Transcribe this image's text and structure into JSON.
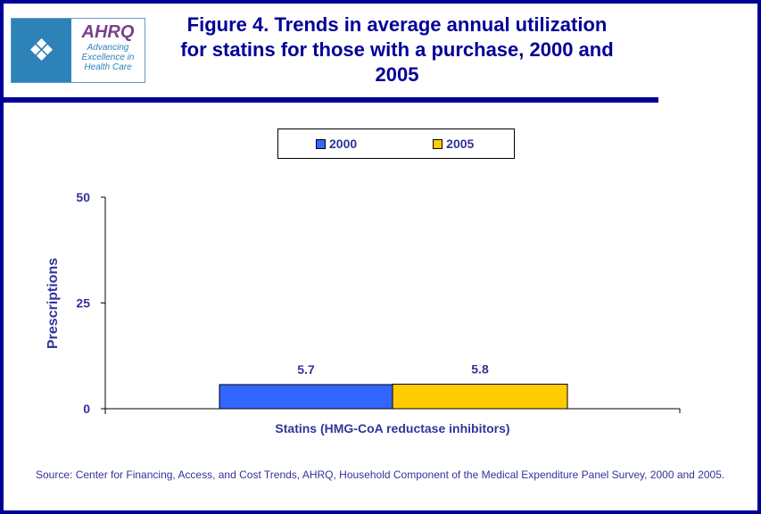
{
  "logo": {
    "brand": "AHRQ",
    "tagline": "Advancing Excellence in Health Care"
  },
  "chart_data": {
    "type": "bar",
    "title": "Figure 4. Trends in average annual utilization for statins for those with a purchase, 2000 and 2005",
    "categories": [
      "Statins (HMG-CoA reductase inhibitors)"
    ],
    "series": [
      {
        "name": "2000",
        "values": [
          5.7
        ],
        "labels": [
          "5.7"
        ],
        "color": "#3366FF"
      },
      {
        "name": "2005",
        "values": [
          5.8
        ],
        "labels": [
          "5.8"
        ],
        "color": "#FFCC00"
      }
    ],
    "xlabel": "",
    "ylabel": "Prescriptions",
    "ylim": [
      0,
      50
    ],
    "yticks": [
      "0",
      "25",
      "50"
    ],
    "grid": false,
    "legend_position": "top"
  },
  "source": "Source: Center for Financing, Access, and Cost Trends, AHRQ, Household Component of the Medical Expenditure Panel Survey, 2000 and 2005."
}
